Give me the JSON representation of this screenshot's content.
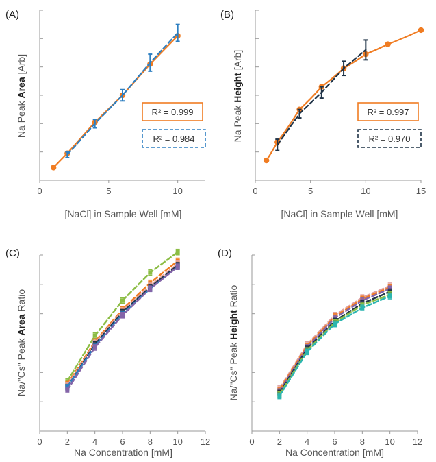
{
  "chart_data": [
    {
      "panel": "(A)",
      "type": "line",
      "xlabel": "[NaCl] in Sample Well [mM]",
      "ylabel": [
        "Na Peak ",
        "Area",
        " [Arb]"
      ],
      "xlim": [
        0,
        12
      ],
      "xticks": [
        0,
        5,
        10
      ],
      "yticks_count": 6,
      "ylim": [
        0,
        6
      ],
      "series": [
        {
          "x": [
            1,
            2,
            4,
            6,
            8,
            10
          ],
          "y": [
            0.45,
            0.95,
            2.05,
            3.0,
            4.1,
            5.1
          ],
          "color": "#f07c22",
          "style": "solid-markers"
        },
        {
          "x": [
            2,
            4,
            6,
            8,
            10
          ],
          "y": [
            0.9,
            2.0,
            3.0,
            4.15,
            5.2
          ],
          "err": [
            0.1,
            0.15,
            0.2,
            0.3,
            0.3
          ],
          "color": "#2d7fc1",
          "style": "dashed-errorbars"
        }
      ],
      "annotations": [
        {
          "text": "R² = 0.999",
          "color": "#f07c22",
          "box": "solid"
        },
        {
          "text": "R² = 0.984",
          "color": "#2d7fc1",
          "box": "dashed"
        }
      ]
    },
    {
      "panel": "(B)",
      "type": "line",
      "xlabel": "[NaCl] in Sample Well [mM]",
      "ylabel": [
        "Na Peak ",
        "Height",
        " [Arb]"
      ],
      "xlim": [
        0,
        15
      ],
      "xticks": [
        0,
        5,
        10,
        15
      ],
      "yticks_count": 6,
      "ylim": [
        0,
        6
      ],
      "series": [
        {
          "x": [
            1,
            2,
            4,
            6,
            8,
            10,
            12,
            15
          ],
          "y": [
            0.7,
            1.35,
            2.5,
            3.3,
            3.95,
            4.45,
            4.8,
            5.3
          ],
          "color": "#f07c22",
          "style": "solid-markers"
        },
        {
          "x": [
            2,
            4,
            6,
            8,
            10
          ],
          "y": [
            1.25,
            2.35,
            3.1,
            3.95,
            4.6
          ],
          "err": [
            0.2,
            0.15,
            0.2,
            0.25,
            0.35
          ],
          "color": "#1f3347",
          "style": "dashed-errorbars"
        }
      ],
      "annotations": [
        {
          "text": "R² = 0.997",
          "color": "#f07c22",
          "box": "solid"
        },
        {
          "text": "R² = 0.970",
          "color": "#1f3347",
          "box": "dashed"
        }
      ]
    },
    {
      "panel": "(C)",
      "type": "line",
      "xlabel": "Na Concentration [mM]",
      "ylabel": [
        "Na/\"Cs\" Peak ",
        "Area",
        " Ratio"
      ],
      "xlim": [
        0,
        12
      ],
      "xticks": [
        0,
        2,
        4,
        6,
        8,
        10,
        12
      ],
      "yticks_count": 6,
      "ylim": [
        0,
        6
      ],
      "series": [
        {
          "x": [
            2,
            4,
            6,
            8,
            10
          ],
          "y": [
            1.7,
            3.25,
            4.45,
            5.4,
            6.1
          ],
          "color": "#8cbd45"
        },
        {
          "x": [
            2,
            4,
            6,
            8,
            10
          ],
          "y": [
            1.6,
            3.05,
            4.15,
            5.05,
            5.8
          ],
          "color": "#f07c22"
        },
        {
          "x": [
            2,
            4,
            6,
            8,
            10
          ],
          "y": [
            1.55,
            3.0,
            4.1,
            4.95,
            5.7
          ],
          "color": "#e0a0a0"
        },
        {
          "x": [
            2,
            4,
            6,
            8,
            10
          ],
          "y": [
            1.5,
            2.95,
            4.05,
            4.9,
            5.65
          ],
          "color": "#1f3347"
        },
        {
          "x": [
            2,
            4,
            6,
            8,
            10
          ],
          "y": [
            1.5,
            2.9,
            4.0,
            4.85,
            5.6
          ],
          "color": "#2d7fc1"
        },
        {
          "x": [
            2,
            4,
            6,
            8,
            10
          ],
          "y": [
            1.4,
            2.85,
            3.95,
            4.85,
            5.6
          ],
          "color": "#8464a8"
        }
      ]
    },
    {
      "panel": "(D)",
      "type": "line",
      "xlabel": "Na Concentration [mM]",
      "ylabel": [
        "Na/\"Cs\" Peak ",
        "Height",
        " Ratio"
      ],
      "xlim": [
        0,
        12
      ],
      "xticks": [
        0,
        2,
        4,
        6,
        8,
        10,
        12
      ],
      "yticks_count": 6,
      "ylim": [
        0,
        6
      ],
      "series": [
        {
          "x": [
            2,
            4,
            6,
            8,
            10
          ],
          "y": [
            1.45,
            2.95,
            3.95,
            4.55,
            4.95
          ],
          "color": "#e0a0a0"
        },
        {
          "x": [
            2,
            4,
            6,
            8,
            10
          ],
          "y": [
            1.4,
            2.9,
            3.9,
            4.5,
            4.9
          ],
          "color": "#f07c22"
        },
        {
          "x": [
            2,
            4,
            6,
            8,
            10
          ],
          "y": [
            1.35,
            2.85,
            3.85,
            4.45,
            4.85
          ],
          "color": "#8464a8"
        },
        {
          "x": [
            2,
            4,
            6,
            8,
            10
          ],
          "y": [
            1.3,
            2.8,
            3.75,
            4.35,
            4.75
          ],
          "color": "#1f3347"
        },
        {
          "x": [
            2,
            4,
            6,
            8,
            10
          ],
          "y": [
            1.25,
            2.75,
            3.7,
            4.3,
            4.65
          ],
          "color": "#8cbd45"
        },
        {
          "x": [
            2,
            4,
            6,
            8,
            10
          ],
          "y": [
            1.2,
            2.7,
            3.65,
            4.2,
            4.6
          ],
          "color": "#2bb5b0"
        }
      ]
    }
  ]
}
